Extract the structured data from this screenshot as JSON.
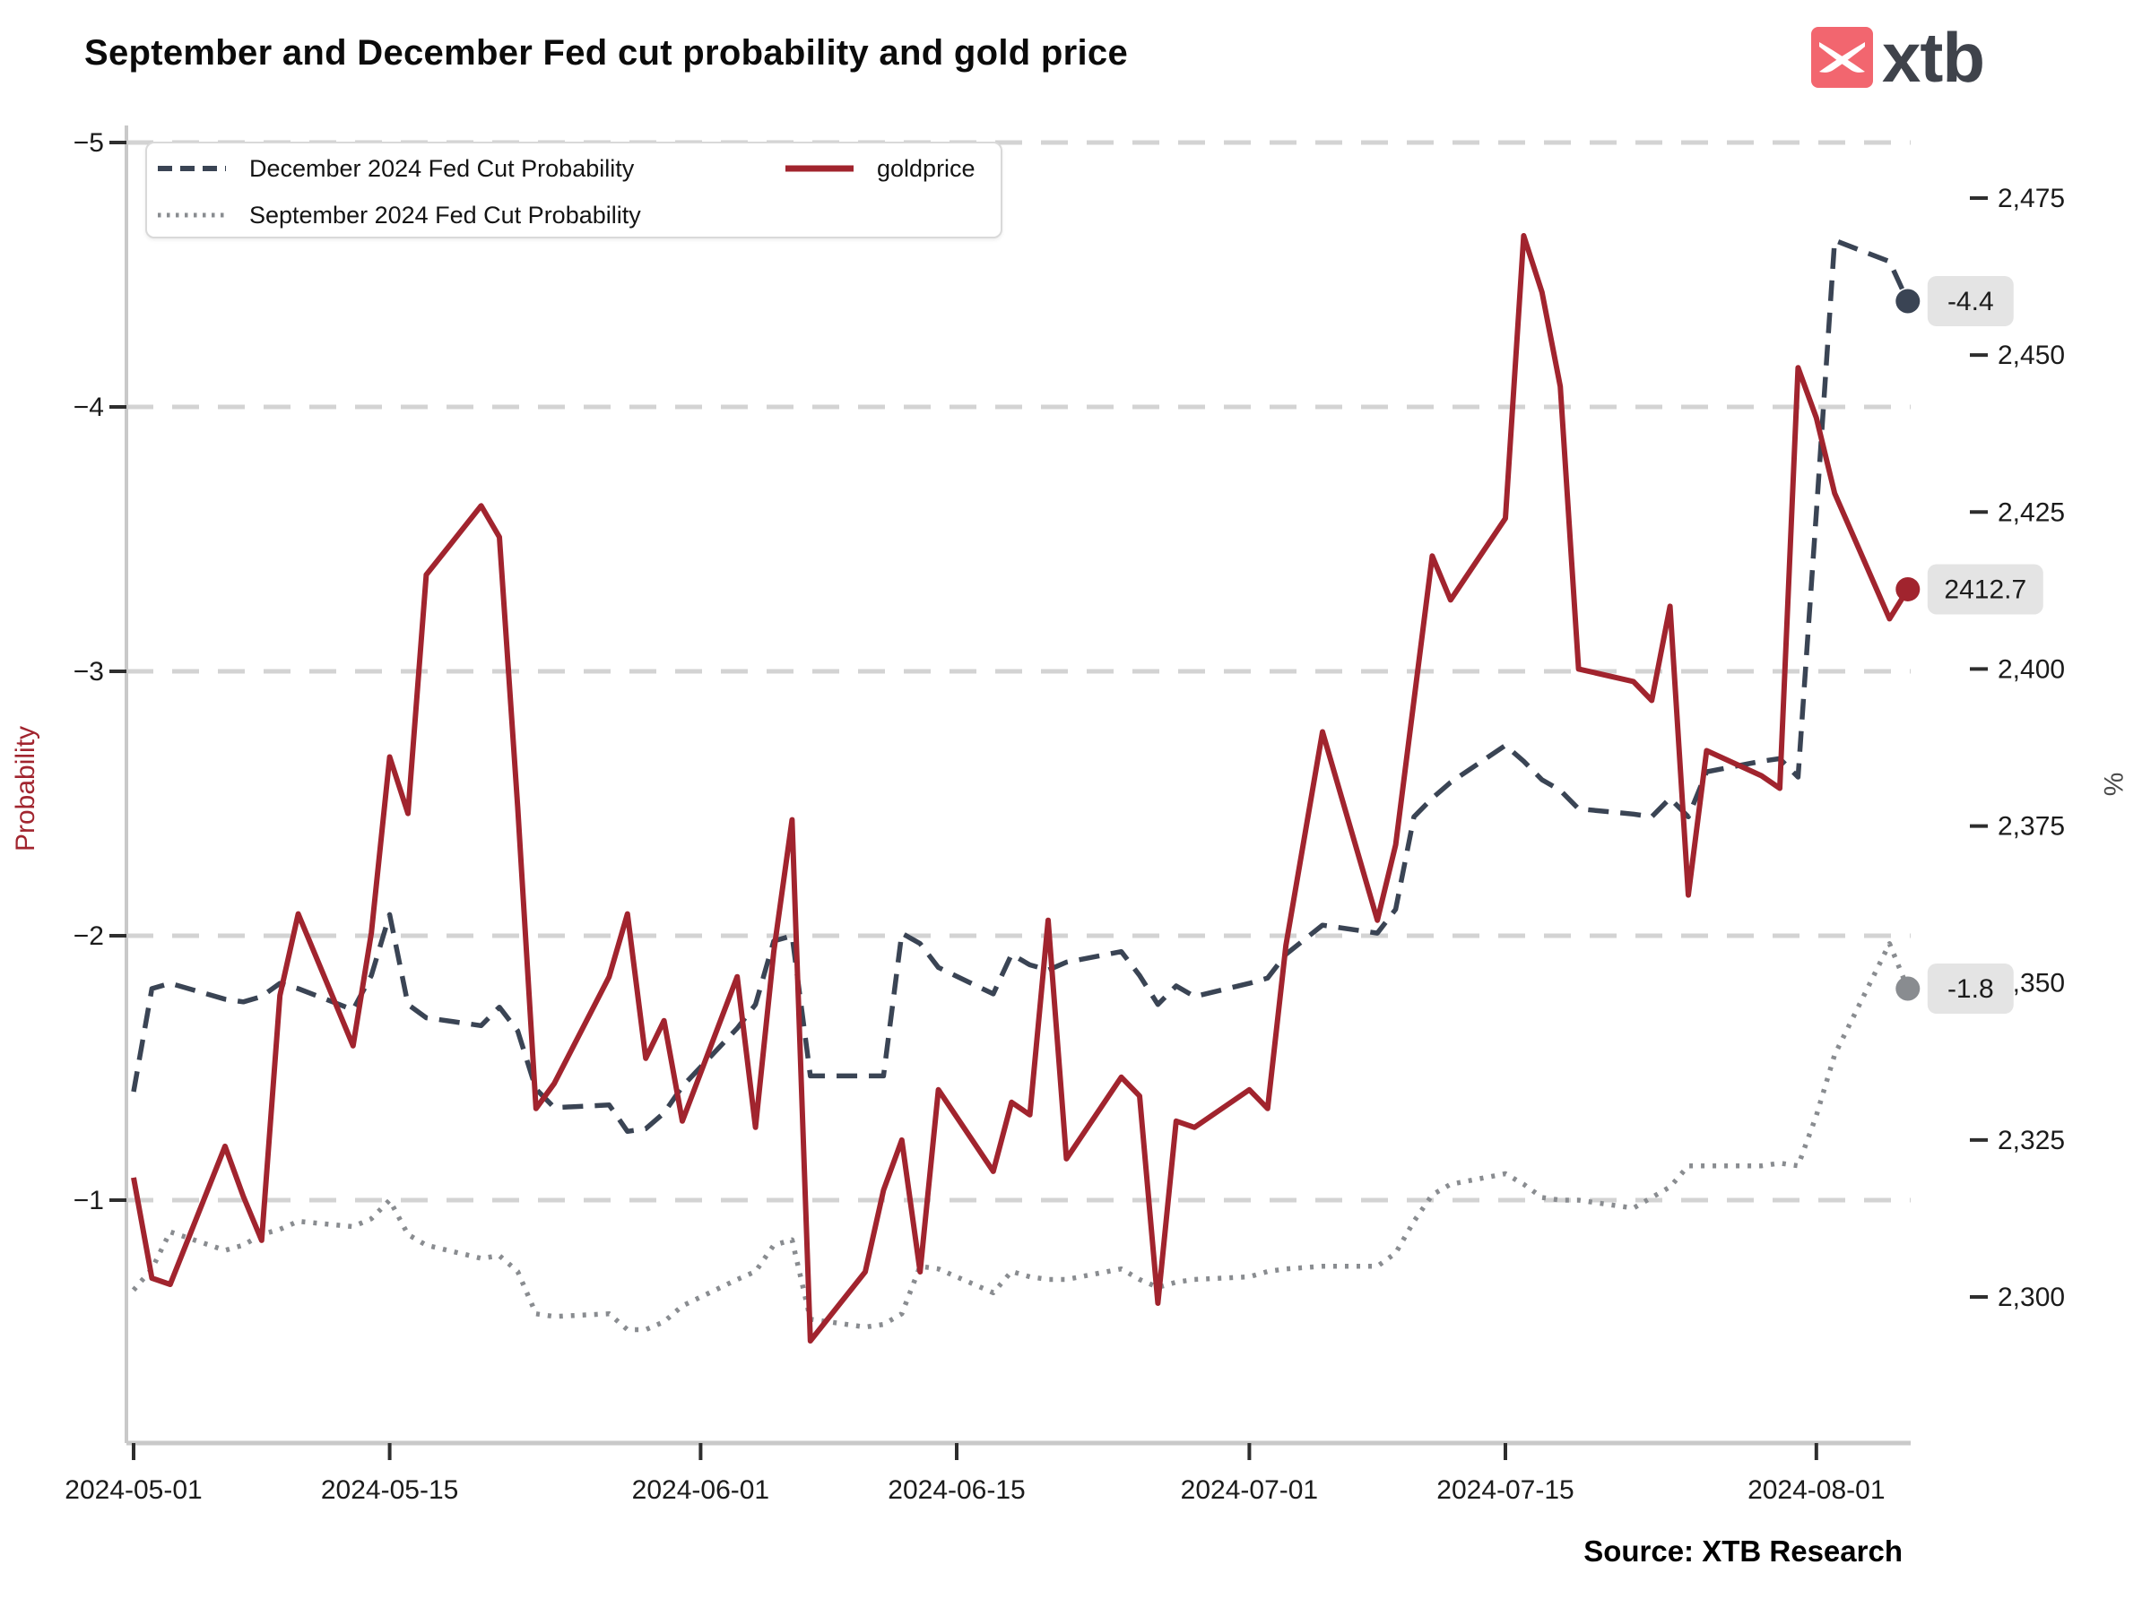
{
  "header": {
    "title": "September and December Fed cut probability and gold price",
    "logo_text": "xtb"
  },
  "source": "Source: XTB Research",
  "colors": {
    "gold_red": "#a1242e",
    "december_dark": "#3a4454",
    "september_gray": "#898c90",
    "grid": "#d3d3d3",
    "axis_line": "#c9c9c9",
    "tick_mark": "#2e2e2e",
    "tick_text": "#1b1b1b",
    "badge_bg": "#e4e4e4",
    "badge_text": "#1c1c1c",
    "logo_red": "#f2666f",
    "logo_text_color": "#3f434b",
    "percent_label": "#4a4a4a"
  },
  "legend": {
    "items": [
      {
        "label": "December 2024 Fed Cut Probability"
      },
      {
        "label": "September 2024 Fed Cut Probability"
      },
      {
        "label": "goldprice"
      }
    ]
  },
  "chart_data": {
    "type": "line",
    "title": "September and December Fed cut probability and gold price",
    "grid": "horizontal-dashed",
    "legend_position": "top-left",
    "x_axis": {
      "start": "2024-05-01",
      "end": "2024-08-06",
      "ticks": [
        "2024-05-01",
        "2024-05-15",
        "2024-06-01",
        "2024-06-15",
        "2024-07-01",
        "2024-07-15",
        "2024-08-01"
      ]
    },
    "left_axis": {
      "label": "Probability",
      "ticks": [
        -5,
        -4,
        -3,
        -2,
        -1
      ],
      "range": [
        -5.07,
        -0.08
      ]
    },
    "right_axis": {
      "label": "%",
      "ticks": [
        2475,
        2450,
        2425,
        2400,
        2375,
        2350,
        2325,
        2300
      ],
      "tick_labels": [
        "2,475",
        "2,450",
        "2,425",
        "2,400",
        "2,375",
        "2,350",
        "2,325",
        "2,300"
      ],
      "range": [
        2277,
        2481
      ]
    },
    "x": [
      "2024-05-01",
      "2024-05-02",
      "2024-05-03",
      "2024-05-06",
      "2024-05-07",
      "2024-05-08",
      "2024-05-09",
      "2024-05-10",
      "2024-05-13",
      "2024-05-14",
      "2024-05-15",
      "2024-05-16",
      "2024-05-17",
      "2024-05-20",
      "2024-05-21",
      "2024-05-22",
      "2024-05-23",
      "2024-05-24",
      "2024-05-27",
      "2024-05-28",
      "2024-05-29",
      "2024-05-30",
      "2024-05-31",
      "2024-06-03",
      "2024-06-04",
      "2024-06-05",
      "2024-06-06",
      "2024-06-07",
      "2024-06-10",
      "2024-06-11",
      "2024-06-12",
      "2024-06-13",
      "2024-06-14",
      "2024-06-17",
      "2024-06-18",
      "2024-06-19",
      "2024-06-20",
      "2024-06-21",
      "2024-06-24",
      "2024-06-25",
      "2024-06-26",
      "2024-06-27",
      "2024-06-28",
      "2024-07-01",
      "2024-07-02",
      "2024-07-03",
      "2024-07-05",
      "2024-07-08",
      "2024-07-09",
      "2024-07-10",
      "2024-07-11",
      "2024-07-12",
      "2024-07-15",
      "2024-07-16",
      "2024-07-17",
      "2024-07-18",
      "2024-07-19",
      "2024-07-22",
      "2024-07-23",
      "2024-07-24",
      "2024-07-25",
      "2024-07-26",
      "2024-07-29",
      "2024-07-30",
      "2024-07-31",
      "2024-08-01",
      "2024-08-02",
      "2024-08-05",
      "2024-08-06"
    ],
    "series": [
      {
        "name": "December 2024 Fed Cut Probability",
        "axis": "left",
        "style": "dashed",
        "color": "#3a4454",
        "end_label": "-4.4",
        "values": [
          -1.41,
          -1.8,
          -1.82,
          -1.76,
          -1.75,
          -1.77,
          -1.82,
          -1.8,
          -1.72,
          -1.85,
          -2.08,
          -1.74,
          -1.69,
          -1.66,
          -1.73,
          -1.64,
          -1.42,
          -1.35,
          -1.36,
          -1.26,
          -1.27,
          -1.33,
          -1.43,
          -1.65,
          -1.74,
          -1.98,
          -2.0,
          -1.47,
          -1.47,
          -1.47,
          -2.01,
          -1.97,
          -1.88,
          -1.78,
          -1.93,
          -1.89,
          -1.87,
          -1.9,
          -1.94,
          -1.85,
          -1.74,
          -1.81,
          -1.77,
          -1.82,
          -1.84,
          -1.93,
          -2.04,
          -2.01,
          -2.1,
          -2.45,
          -2.52,
          -2.58,
          -2.72,
          -2.66,
          -2.59,
          -2.55,
          -2.48,
          -2.46,
          -2.45,
          -2.52,
          -2.45,
          -2.62,
          -2.66,
          -2.67,
          -2.6,
          -3.6,
          -4.63,
          -4.55,
          -4.4
        ]
      },
      {
        "name": "September 2024 Fed Cut Probability",
        "axis": "left",
        "style": "dotted",
        "color": "#898c90",
        "end_label": "-1.8",
        "values": [
          -0.66,
          -0.74,
          -0.88,
          -0.81,
          -0.83,
          -0.87,
          -0.89,
          -0.92,
          -0.9,
          -0.93,
          -1.0,
          -0.87,
          -0.83,
          -0.78,
          -0.79,
          -0.73,
          -0.57,
          -0.56,
          -0.57,
          -0.51,
          -0.51,
          -0.54,
          -0.6,
          -0.7,
          -0.73,
          -0.83,
          -0.85,
          -0.55,
          -0.52,
          -0.53,
          -0.57,
          -0.75,
          -0.74,
          -0.65,
          -0.73,
          -0.71,
          -0.7,
          -0.7,
          -0.74,
          -0.7,
          -0.67,
          -0.69,
          -0.7,
          -0.71,
          -0.73,
          -0.74,
          -0.75,
          -0.75,
          -0.8,
          -0.92,
          -1.02,
          -1.06,
          -1.1,
          -1.06,
          -1.01,
          -1.0,
          -1.0,
          -0.97,
          -1.01,
          -1.05,
          -1.13,
          -1.13,
          -1.13,
          -1.14,
          -1.13,
          -1.32,
          -1.55,
          -1.97,
          -1.8
        ]
      },
      {
        "name": "goldprice",
        "axis": "right",
        "style": "solid",
        "color": "#a1242e",
        "end_label": "2412.7",
        "values": [
          2319,
          2303,
          2302,
          2324,
          2316,
          2309,
          2348,
          2361,
          2340,
          2358,
          2386,
          2377,
          2415,
          2426,
          2421,
          2378,
          2330,
          2334,
          2351,
          2361,
          2338,
          2344,
          2328,
          2351,
          2327,
          2355,
          2376,
          2293,
          2304,
          2317,
          2325,
          2304,
          2333,
          2320,
          2331,
          2329,
          2360,
          2322,
          2335,
          2332,
          2299,
          2328,
          2327,
          2333,
          2330,
          2356,
          2390,
          2360,
          2372,
          2395,
          2418,
          2411,
          2424,
          2469,
          2460,
          2445,
          2400,
          2398,
          2395,
          2410,
          2364,
          2387,
          2383,
          2381,
          2448,
          2440,
          2428,
          2408,
          2412.7
        ]
      }
    ]
  }
}
